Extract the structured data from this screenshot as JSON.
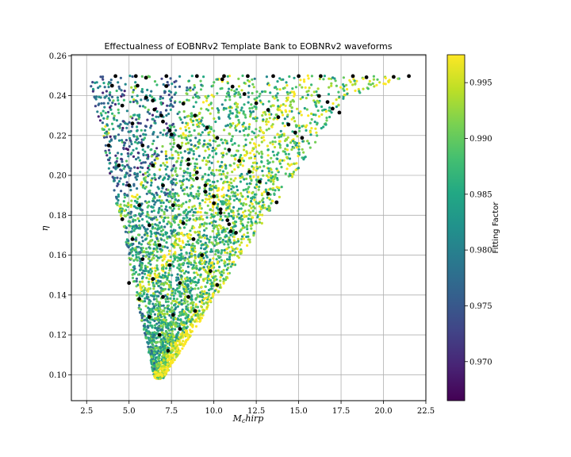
{
  "chart_data": {
    "type": "scatter",
    "title": "Effectualness of EOBNRv2 Template Bank to EOBNRv2 waveforms",
    "xlabel": "M_chirp",
    "ylabel": "η",
    "xlim": [
      1.6,
      22.5
    ],
    "ylim": [
      0.087,
      0.2605
    ],
    "x_ticks": [
      2.5,
      5.0,
      7.5,
      10.0,
      12.5,
      15.0,
      17.5,
      20.0,
      22.5
    ],
    "x_tick_labels": [
      "2.5",
      "5.0",
      "7.5",
      "10.0",
      "12.5",
      "15.0",
      "17.5",
      "20.0",
      "22.5"
    ],
    "y_ticks": [
      0.1,
      0.12,
      0.14,
      0.16,
      0.18,
      0.2,
      0.22,
      0.24,
      0.26
    ],
    "y_tick_labels": [
      "0.10",
      "0.12",
      "0.14",
      "0.16",
      "0.18",
      "0.20",
      "0.22",
      "0.24",
      "0.26"
    ],
    "grid": true,
    "colormap": "viridis",
    "colorbar": {
      "label": "Fitting Factor",
      "range": [
        0.9665,
        0.9975
      ],
      "ticks": [
        0.97,
        0.975,
        0.98,
        0.985,
        0.99,
        0.995
      ],
      "tick_labels": [
        "0.970",
        "0.975",
        "0.980",
        "0.985",
        "0.990",
        "0.995"
      ]
    },
    "template_points_color": "#000000",
    "series": [
      {
        "values": [
          [
            4.2,
            0.2498
          ],
          [
            5.4,
            0.2498
          ],
          [
            7.2,
            0.2498
          ],
          [
            9.0,
            0.2498
          ],
          [
            10.6,
            0.2498
          ],
          [
            12.0,
            0.2498
          ],
          [
            13.5,
            0.2498
          ],
          [
            15.0,
            0.2498
          ],
          [
            16.3,
            0.2498
          ],
          [
            18.2,
            0.2498
          ],
          [
            19.0,
            0.2492
          ],
          [
            20.6,
            0.2494
          ],
          [
            21.5,
            0.2498
          ]
        ]
      },
      {
        "values": [
          [
            10.5,
            0.2482
          ],
          [
            11.1,
            0.2445
          ],
          [
            11.8,
            0.2408
          ],
          [
            12.5,
            0.2362
          ],
          [
            13.2,
            0.2328
          ],
          [
            13.8,
            0.2292
          ],
          [
            14.4,
            0.2255
          ],
          [
            14.8,
            0.2215
          ],
          [
            15.2,
            0.2188
          ]
        ]
      },
      {
        "values": [
          [
            7.2,
            0.2448
          ],
          [
            8.2,
            0.236
          ],
          [
            8.9,
            0.23
          ],
          [
            9.6,
            0.224
          ],
          [
            10.2,
            0.2188
          ],
          [
            10.9,
            0.2128
          ],
          [
            11.5,
            0.2073
          ],
          [
            12.1,
            0.2018
          ],
          [
            12.7,
            0.1968
          ],
          [
            13.2,
            0.1908
          ],
          [
            13.7,
            0.1865
          ]
        ]
      },
      {
        "values": [
          [
            6.0,
            0.249
          ],
          [
            6.4,
            0.2375
          ],
          [
            6.9,
            0.23
          ],
          [
            7.4,
            0.2225
          ],
          [
            7.9,
            0.2148
          ],
          [
            8.5,
            0.2055
          ],
          [
            9.0,
            0.1985
          ],
          [
            9.5,
            0.1918
          ],
          [
            10.0,
            0.186
          ],
          [
            10.4,
            0.1812
          ],
          [
            10.9,
            0.1755
          ],
          [
            11.3,
            0.1712
          ]
        ]
      },
      {
        "values": [
          [
            16.2,
            0.2398
          ],
          [
            16.7,
            0.2368
          ],
          [
            17.0,
            0.2335
          ],
          [
            17.4,
            0.2315
          ]
        ]
      },
      {
        "values": [
          [
            5.5,
            0.245
          ],
          [
            6.0,
            0.239
          ],
          [
            6.5,
            0.233
          ],
          [
            7.0,
            0.227
          ],
          [
            7.5,
            0.2205
          ],
          [
            8.0,
            0.214
          ],
          [
            8.5,
            0.208
          ],
          [
            9.0,
            0.2015
          ],
          [
            9.5,
            0.195
          ],
          [
            10.0,
            0.1895
          ],
          [
            10.4,
            0.183
          ],
          [
            10.8,
            0.1775
          ],
          [
            11.0,
            0.172
          ]
        ]
      },
      {
        "values": [
          [
            4.0,
            0.245
          ],
          [
            4.6,
            0.235
          ],
          [
            5.2,
            0.226
          ],
          [
            5.8,
            0.215
          ],
          [
            6.4,
            0.205
          ],
          [
            7.0,
            0.195
          ],
          [
            7.6,
            0.185
          ],
          [
            8.2,
            0.176
          ],
          [
            8.8,
            0.168
          ],
          [
            9.3,
            0.16
          ],
          [
            9.8,
            0.152
          ],
          [
            10.2,
            0.145
          ]
        ]
      },
      {
        "values": [
          [
            3.8,
            0.215
          ],
          [
            4.4,
            0.205
          ],
          [
            5.0,
            0.195
          ],
          [
            5.6,
            0.185
          ],
          [
            6.2,
            0.175
          ],
          [
            6.8,
            0.165
          ],
          [
            7.4,
            0.155
          ],
          [
            8.0,
            0.146
          ],
          [
            8.5,
            0.139
          ],
          [
            8.9,
            0.132
          ]
        ]
      },
      {
        "values": [
          [
            4.6,
            0.178
          ],
          [
            5.2,
            0.168
          ],
          [
            5.8,
            0.158
          ],
          [
            6.4,
            0.148
          ],
          [
            7.0,
            0.139
          ],
          [
            7.6,
            0.13
          ],
          [
            8.0,
            0.123
          ]
        ]
      },
      {
        "values": [
          [
            5.0,
            0.146
          ],
          [
            5.6,
            0.138
          ],
          [
            6.2,
            0.129
          ],
          [
            6.8,
            0.12
          ],
          [
            7.3,
            0.112
          ]
        ]
      }
    ]
  }
}
